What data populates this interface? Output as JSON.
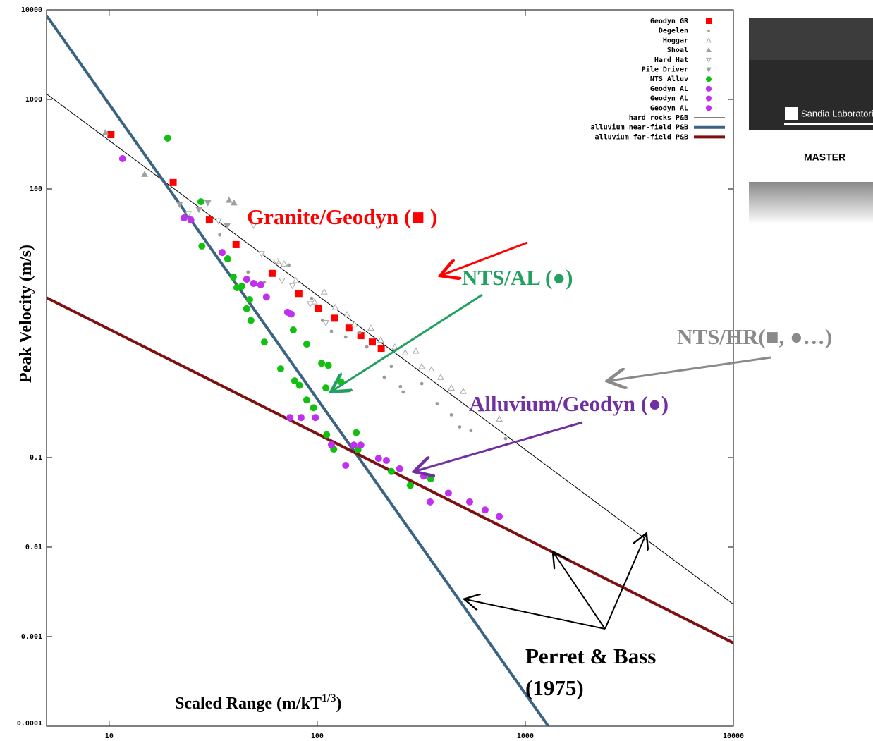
{
  "chart_data": {
    "type": "scatter",
    "x_label": [
      "Scaled Range (m/kT",
      "1/3",
      ")"
    ],
    "y_label": "Peak Velocity (m/s)",
    "xscale": "log",
    "yscale": "log",
    "xlim": [
      5,
      10000
    ],
    "ylim": [
      0.0001,
      10000
    ],
    "xticks": [
      10,
      100,
      1000,
      10000
    ],
    "yticks": [
      0.0001,
      0.001,
      0.01,
      0.1,
      100,
      1000,
      10000
    ],
    "legend": "top-right",
    "series": [
      {
        "name": "Geodyn GR",
        "color": "#ff0000",
        "marker": "square",
        "filled": true,
        "x": [
          10.2,
          20.3,
          30.3,
          40.7,
          60.7,
          81.6,
          101.6,
          121.6,
          142,
          162,
          184,
          203
        ],
        "values": [
          404,
          118,
          45,
          23.9,
          11.4,
          6.8,
          4.6,
          3.6,
          2.8,
          2.3,
          1.95,
          1.66
        ]
      },
      {
        "name": "Degelen",
        "color": "#9a9a9a",
        "marker": "dot",
        "filled": true,
        "x": [
          34,
          46.5,
          55.7,
          73,
          94,
          106,
          117,
          137,
          160,
          173,
          210,
          227,
          251,
          259,
          318,
          377,
          441,
          484,
          548,
          804
        ],
        "values": [
          30.7,
          11.8,
          9.1,
          14.1,
          6.0,
          3.4,
          2.57,
          2.22,
          2.48,
          1.72,
          0.79,
          1.04,
          0.62,
          0.54,
          0.67,
          0.4,
          0.3,
          0.22,
          0.2,
          0.163
        ]
      },
      {
        "name": "Hoggar",
        "color": "#a8a8a8",
        "marker": "triangle",
        "filled": false,
        "x": [
          64.6,
          69.3,
          79,
          97,
          108,
          122,
          139,
          151,
          181,
          202,
          236,
          265,
          298,
          318,
          354,
          392,
          441,
          503,
          617,
          750
        ],
        "values": [
          15.5,
          14.6,
          9.5,
          5.5,
          7.1,
          4.75,
          3.96,
          3.1,
          2.8,
          2.06,
          1.72,
          1.49,
          1.55,
          1.04,
          0.96,
          0.79,
          0.6,
          0.55,
          0.35,
          0.27
        ]
      },
      {
        "name": "Shoal",
        "color": "#a0a0a0",
        "marker": "triangle",
        "filled": true,
        "x": [
          9.6,
          14.8,
          37.7,
          39.8
        ],
        "values": [
          426,
          146,
          75,
          70
        ]
      },
      {
        "name": "Hard Hat",
        "color": "#a8a8a8",
        "marker": "triangle-down",
        "filled": false,
        "x": [
          24,
          33.5,
          37,
          49.5,
          54,
          63.6,
          67.7,
          76,
          92.5,
          110
        ],
        "values": [
          53,
          44,
          39,
          39,
          18.9,
          15.5,
          9.5,
          8.3,
          5.2,
          3.2
        ]
      },
      {
        "name": "Pile Driver",
        "color": "#a0a0a0",
        "marker": "triangle-down",
        "filled": true,
        "x": [
          21.8,
          27,
          29.8,
          36.8
        ],
        "values": [
          67,
          59,
          70,
          39
        ]
      },
      {
        "name": "NTS Alluv",
        "color": "#12c012",
        "marker": "circle",
        "filled": true,
        "x": [
          19.1,
          27.6,
          27.9,
          37.1,
          39.5,
          41.1,
          45.8,
          48,
          55.7,
          66.7,
          77.9,
          82.2,
          89,
          96,
          105,
          113,
          110,
          130,
          76.7,
          89,
          111,
          120,
          154,
          157,
          227,
          280,
          351,
          47.3,
          43.4
        ],
        "values": [
          369,
          72,
          23,
          16.6,
          10.4,
          7.9,
          4.6,
          3.4,
          1.95,
          0.98,
          0.72,
          0.64,
          0.44,
          0.36,
          1.13,
          1.07,
          0.6,
          0.7,
          2.66,
          1.85,
          0.18,
          0.124,
          0.19,
          0.122,
          0.07,
          0.049,
          0.058,
          5.8,
          8.2
        ]
      },
      {
        "name": "Geodyn AL",
        "color": "#c030f0",
        "marker": "circle",
        "filled": true,
        "x": [
          11.6,
          22.9,
          24.7,
          34.9,
          45.8,
          49.5,
          53.5,
          57,
          72
        ],
        "values": [
          218,
          47.5,
          45,
          19.5,
          9.8,
          8.8,
          8.5,
          6.2,
          4.2
        ]
      },
      {
        "name": "Geodyn AL",
        "color": "#c030f0",
        "marker": "circle",
        "filled": true,
        "x": [
          75,
          74,
          83.6,
          98,
          117,
          137,
          150,
          162,
          197
        ],
        "values": [
          4.0,
          0.28,
          0.28,
          0.28,
          0.139,
          0.082,
          0.138,
          0.138,
          0.098
        ]
      },
      {
        "name": "Geodyn AL",
        "color": "#c030f0",
        "marker": "circle",
        "filled": true,
        "x": [
          215,
          249,
          325,
          349,
          427,
          540,
          641,
          750
        ],
        "values": [
          0.093,
          0.075,
          0.062,
          0.032,
          0.04,
          0.032,
          0.026,
          0.022
        ]
      },
      {
        "name": "hard rocks P&B",
        "color": "#000000",
        "marker": "line",
        "width": 1,
        "x": [
          5,
          10000
        ],
        "values": [
          1150,
          0.0023
        ]
      },
      {
        "name": "alluvium near-field P&B",
        "color": "#3a6482",
        "marker": "line",
        "width": 4,
        "x": [
          5,
          1290
        ],
        "values": [
          8650,
          0.0001
        ]
      },
      {
        "name": "alluvium far-field P&B",
        "color": "#7e1010",
        "marker": "line",
        "width": 4,
        "x": [
          5,
          10000
        ],
        "values": [
          6.1,
          0.00085
        ]
      }
    ],
    "annotations": [
      {
        "text": "Granite/Geodyn (■ )",
        "color": "#ff0000"
      },
      {
        "text": "NTS/AL (●)",
        "color": "#21a060"
      },
      {
        "text": "NTS/HR(■, ●…)",
        "color": "#8a8a8a"
      },
      {
        "text": "Alluvium/Geodyn (●)",
        "color": "#7030a0"
      },
      {
        "text": "Perret & Bass",
        "color": "#000000"
      },
      {
        "text": "(1975)",
        "color": "#000000"
      }
    ]
  },
  "inset": {
    "logo": "Sandia Laboratories",
    "stamp": "MASTER"
  }
}
